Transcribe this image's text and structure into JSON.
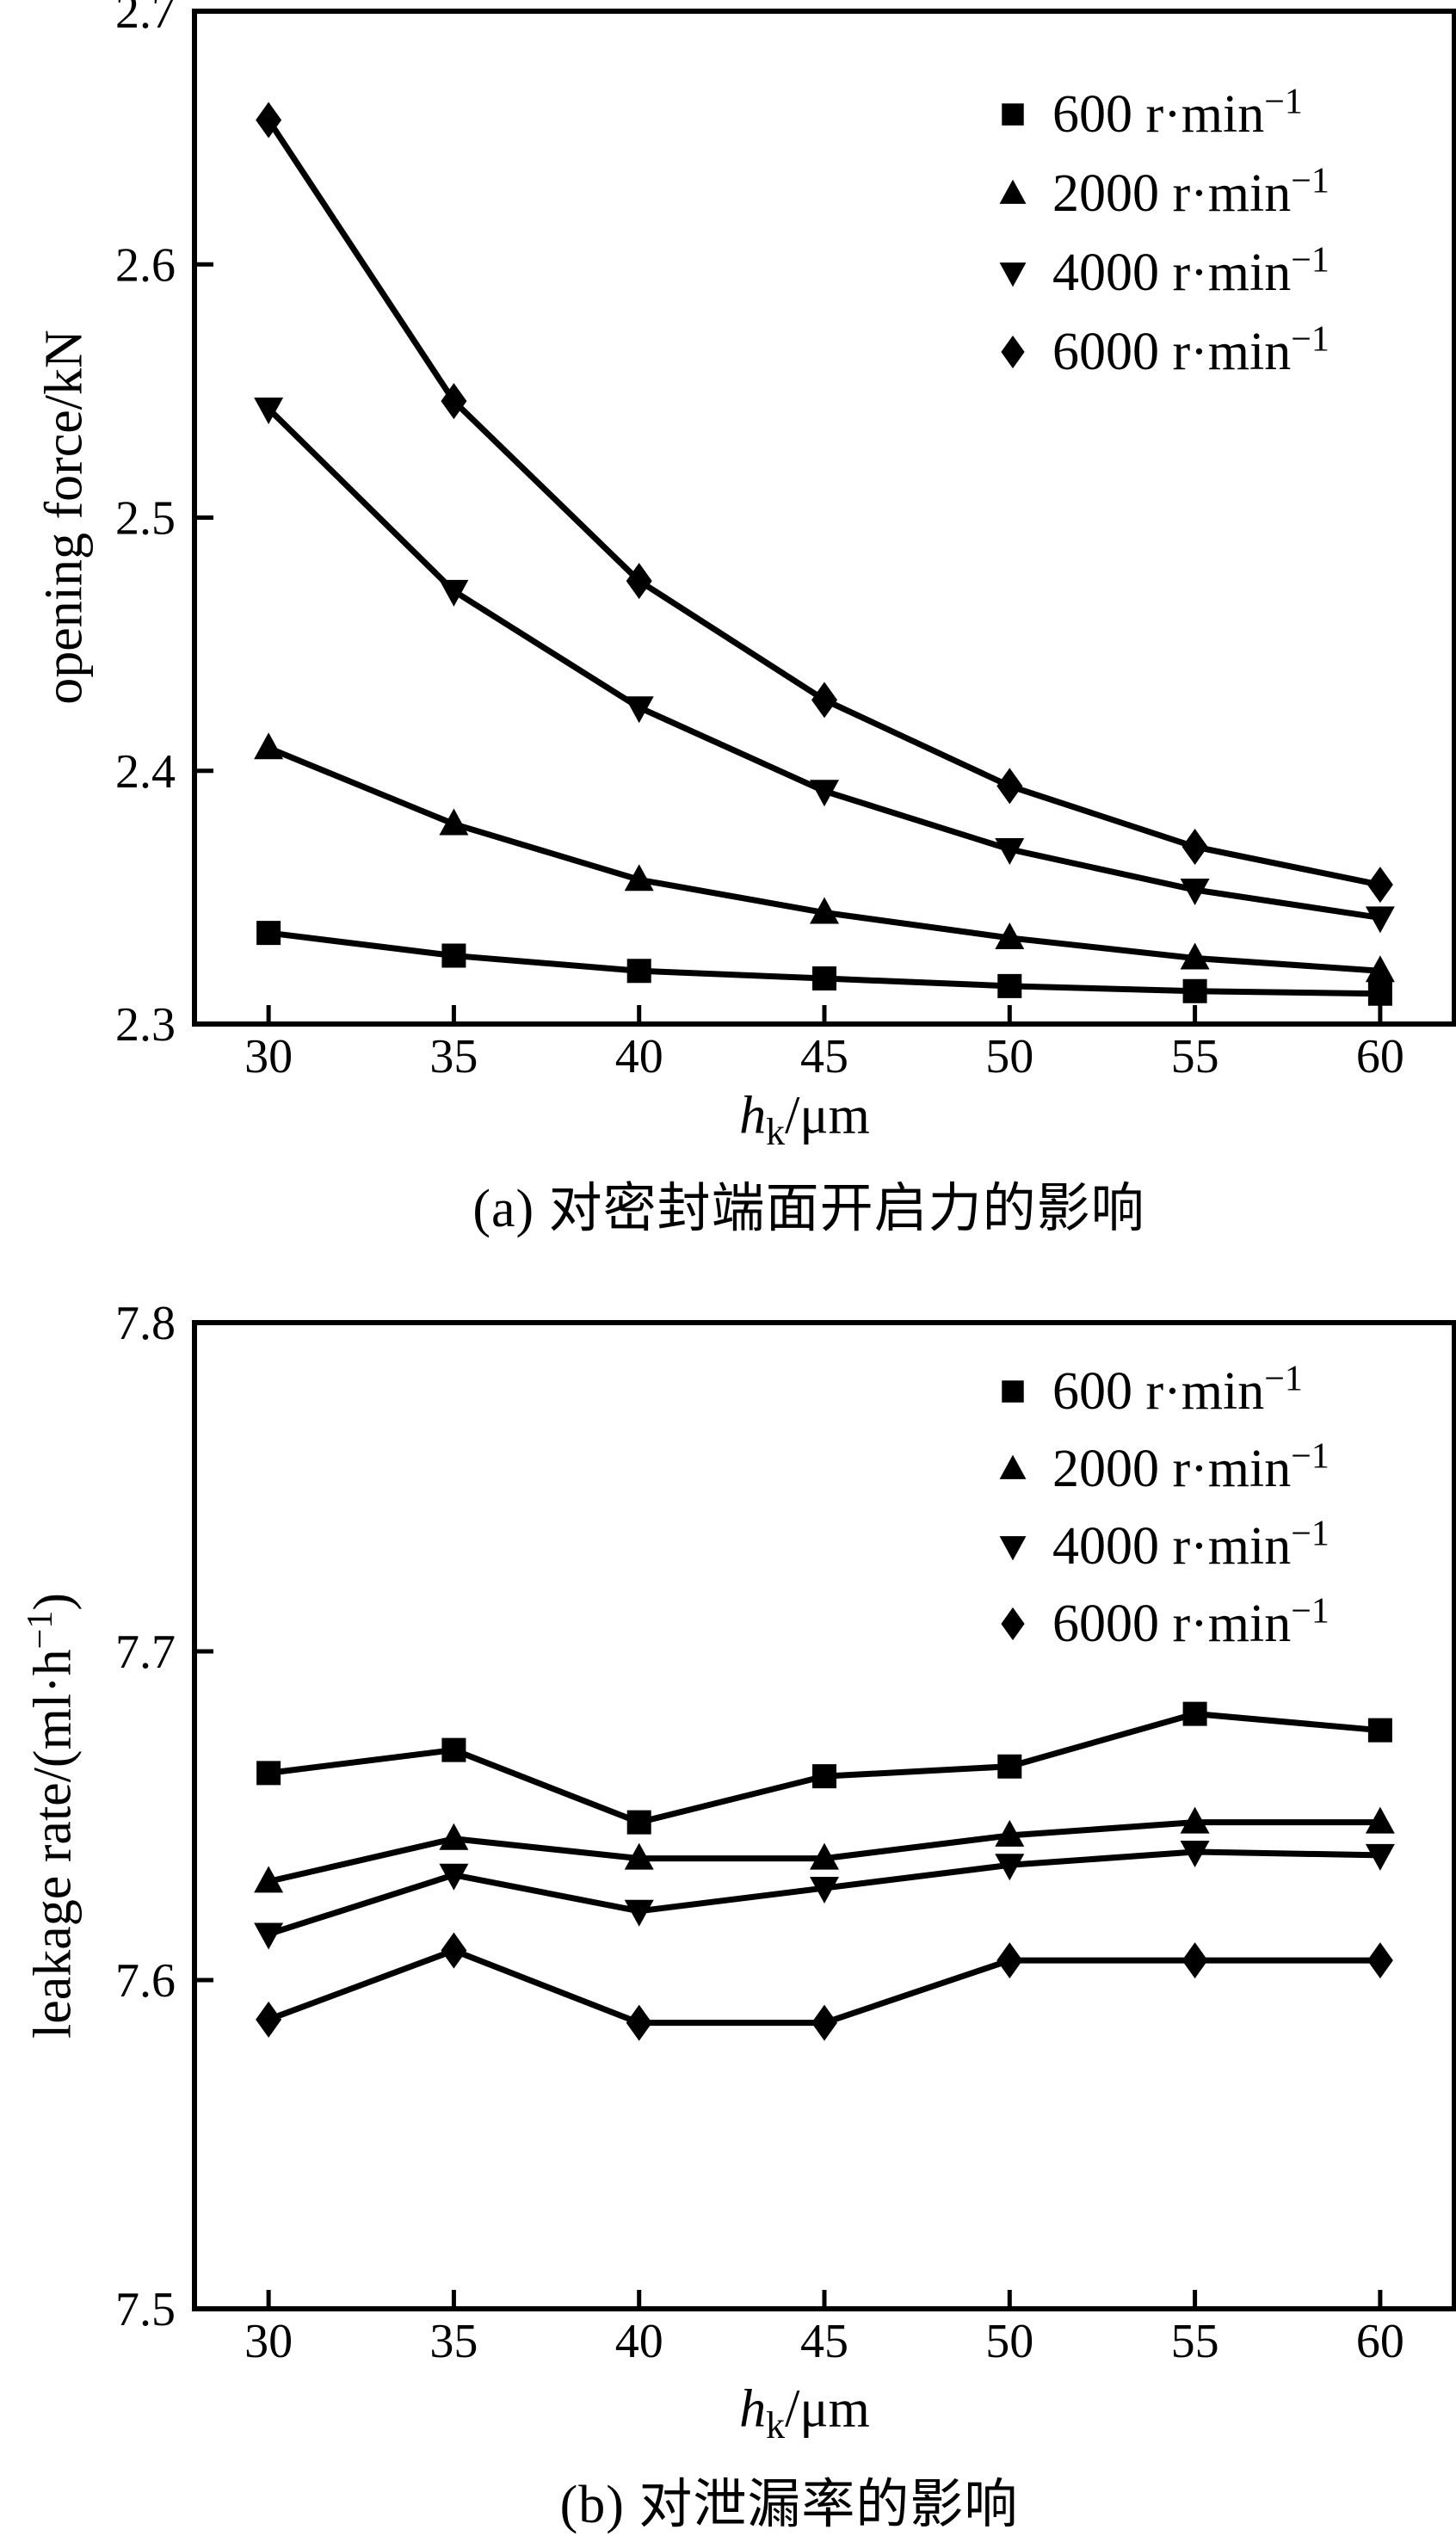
{
  "page": {
    "background": "#ffffff",
    "ink": "#000000"
  },
  "chart_data": [
    {
      "id": "a",
      "type": "line",
      "caption": "(a) 对密封端面开启力的影响",
      "xlabel": {
        "var": "h",
        "sub": "k",
        "rest": "/μm"
      },
      "ylabel": {
        "base": "opening force/kN",
        "sup": "",
        "close": ""
      },
      "xlim": [
        28,
        62
      ],
      "ylim": [
        2.3,
        2.7
      ],
      "x_ticks": [
        30,
        35,
        40,
        45,
        50,
        55,
        60
      ],
      "x_tick_labels": [
        "30",
        "35",
        "40",
        "45",
        "50",
        "55",
        "60"
      ],
      "y_ticks": [
        2.3,
        2.4,
        2.5,
        2.6,
        2.7
      ],
      "y_tick_labels": [
        "2.3",
        "2.4",
        "2.5",
        "2.6",
        "2.7"
      ],
      "grid": false,
      "legend_position": "top-right",
      "x": [
        30,
        35,
        40,
        45,
        50,
        55,
        60
      ],
      "series": [
        {
          "name": "600 r·min⁻¹",
          "legend_base": "600 r·min",
          "legend_sup": "−1",
          "marker": "square",
          "color": "#000000",
          "values": [
            2.336,
            2.327,
            2.321,
            2.318,
            2.315,
            2.313,
            2.312
          ]
        },
        {
          "name": "2000 r·min⁻¹",
          "legend_base": "2000 r·min",
          "legend_sup": "−1",
          "marker": "triangle-up",
          "color": "#000000",
          "values": [
            2.409,
            2.379,
            2.357,
            2.344,
            2.334,
            2.326,
            2.321
          ]
        },
        {
          "name": "4000 r·min⁻¹",
          "legend_base": "4000 r·min",
          "legend_sup": "−1",
          "marker": "triangle-down",
          "color": "#000000",
          "values": [
            2.543,
            2.471,
            2.425,
            2.392,
            2.369,
            2.353,
            2.342
          ]
        },
        {
          "name": "6000 r·min⁻¹",
          "legend_base": "6000 r·min",
          "legend_sup": "−1",
          "marker": "diamond",
          "color": "#000000",
          "values": [
            2.657,
            2.546,
            2.475,
            2.428,
            2.394,
            2.37,
            2.355
          ]
        }
      ]
    },
    {
      "id": "b",
      "type": "line",
      "caption": "(b) 对泄漏率的影响",
      "xlabel": {
        "var": "h",
        "sub": "k",
        "rest": "/μm"
      },
      "ylabel": {
        "base": "leakage rate/(ml·h",
        "sup": "−1",
        "close": ")"
      },
      "xlim": [
        28,
        62
      ],
      "ylim": [
        7.5,
        7.8
      ],
      "x_ticks": [
        30,
        35,
        40,
        45,
        50,
        55,
        60
      ],
      "x_tick_labels": [
        "30",
        "35",
        "40",
        "45",
        "50",
        "55",
        "60"
      ],
      "y_ticks": [
        7.5,
        7.6,
        7.7,
        7.8
      ],
      "y_tick_labels": [
        "7.5",
        "7.6",
        "7.7",
        "7.8"
      ],
      "grid": false,
      "legend_position": "top-right",
      "x": [
        30,
        35,
        40,
        45,
        50,
        55,
        60
      ],
      "series": [
        {
          "name": "600 r·min⁻¹",
          "legend_base": "600 r·min",
          "legend_sup": "−1",
          "marker": "square",
          "color": "#000000",
          "values": [
            7.663,
            7.67,
            7.648,
            7.662,
            7.665,
            7.681,
            7.676
          ]
        },
        {
          "name": "2000 r·min⁻¹",
          "legend_base": "2000 r·min",
          "legend_sup": "−1",
          "marker": "triangle-up",
          "color": "#000000",
          "values": [
            7.63,
            7.643,
            7.637,
            7.637,
            7.644,
            7.648,
            7.648
          ]
        },
        {
          "name": "4000 r·min⁻¹",
          "legend_base": "4000 r·min",
          "legend_sup": "−1",
          "marker": "triangle-down",
          "color": "#000000",
          "values": [
            7.614,
            7.632,
            7.621,
            7.628,
            7.635,
            7.639,
            7.638
          ]
        },
        {
          "name": "6000 r·min⁻¹",
          "legend_base": "6000 r·min",
          "legend_sup": "−1",
          "marker": "diamond",
          "color": "#000000",
          "values": [
            7.588,
            7.609,
            7.587,
            7.587,
            7.606,
            7.606,
            7.606
          ]
        }
      ]
    }
  ]
}
